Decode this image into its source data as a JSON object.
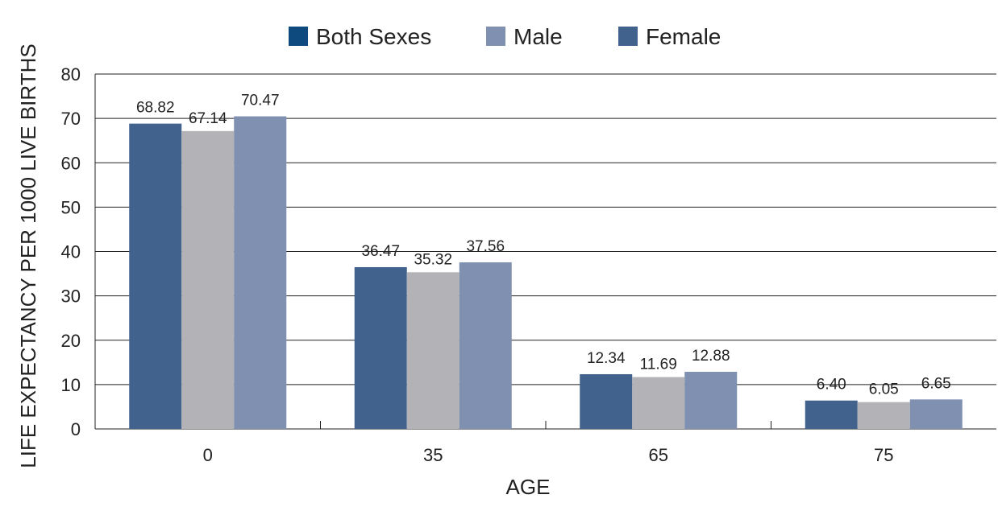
{
  "chart_data": {
    "type": "bar",
    "categories": [
      "0",
      "35",
      "65",
      "75"
    ],
    "series": [
      {
        "name": "Both Sexes",
        "values": [
          68.82,
          36.47,
          12.34,
          6.4
        ],
        "labels": [
          "68.82",
          "36.47",
          "12.34",
          "6.40"
        ],
        "color": "#41628c",
        "legend_color": "#0f4a7f"
      },
      {
        "name": "Male",
        "values": [
          67.14,
          35.32,
          11.69,
          6.05
        ],
        "labels": [
          "67.14",
          "35.32",
          "11.69",
          "6.05"
        ],
        "color": "#b2b2b7",
        "legend_color": "#8090b0"
      },
      {
        "name": "Female",
        "values": [
          70.47,
          37.56,
          12.88,
          6.65
        ],
        "labels": [
          "70.47",
          "37.56",
          "12.88",
          "6.65"
        ],
        "color": "#8090b0",
        "legend_color": "#41628c"
      }
    ],
    "xlabel": "AGE",
    "ylabel": "LIFE EXPECTANCY PER 1000 LIVE BIRTHS",
    "ylim": [
      0,
      80
    ],
    "yticks": [
      "0",
      "10",
      "20",
      "30",
      "40",
      "50",
      "60",
      "70",
      "80"
    ],
    "grid": true,
    "legend_position": "top"
  }
}
